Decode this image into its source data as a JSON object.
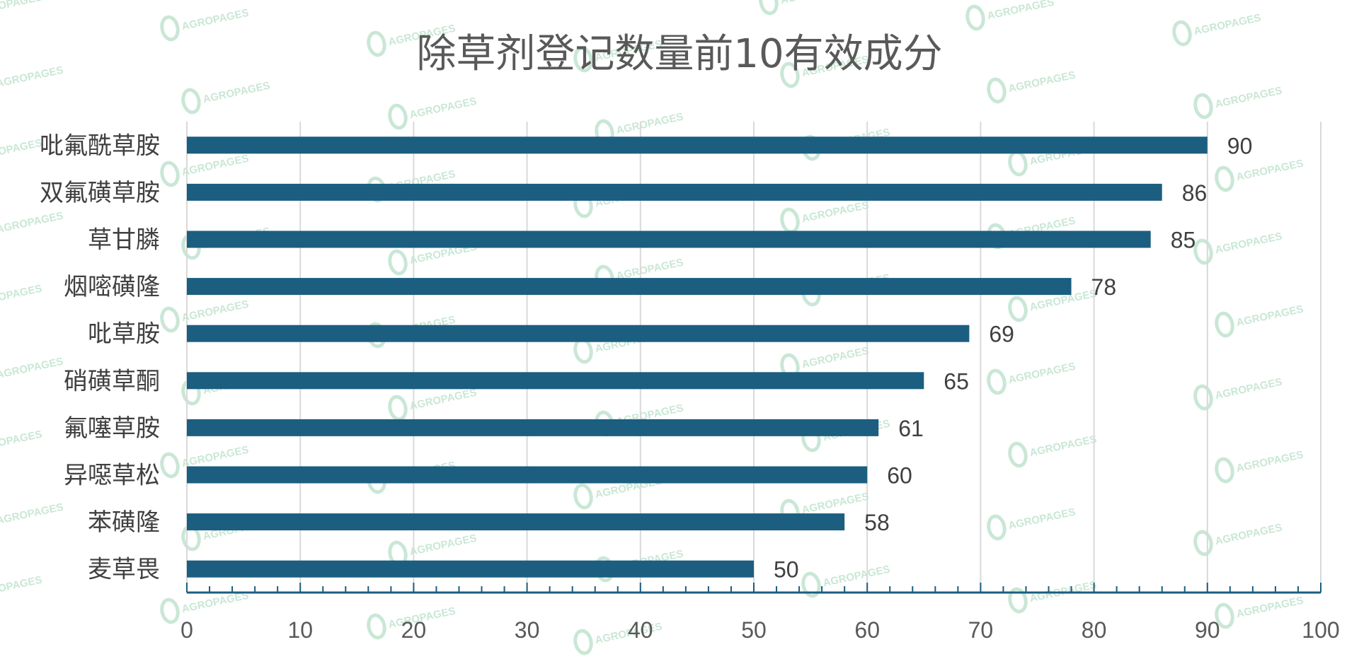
{
  "chart_data": {
    "type": "bar",
    "orientation": "horizontal",
    "title": "除草剂登记数量前10有效成分",
    "xlabel": "",
    "ylabel": "",
    "categories": [
      "吡氟酰草胺",
      "双氟磺草胺",
      "草甘膦",
      "烟嘧磺隆",
      "吡草胺",
      "硝磺草酮",
      "氟噻草胺",
      "异噁草松",
      "苯磺隆",
      "麦草畏"
    ],
    "values": [
      90,
      86,
      85,
      78,
      69,
      65,
      61,
      60,
      58,
      50
    ],
    "xlim": [
      0,
      100
    ],
    "xticks": [
      0,
      10,
      20,
      30,
      40,
      50,
      60,
      70,
      80,
      90,
      100
    ],
    "grid": true,
    "legend": "none",
    "data_labels": true,
    "bar_color": "#1b5e80",
    "grid_color": "#d9d9d9",
    "axis_color": "#1b5e80"
  },
  "watermark": {
    "text": "AGROPAGES",
    "color": "#9ed4b4"
  }
}
